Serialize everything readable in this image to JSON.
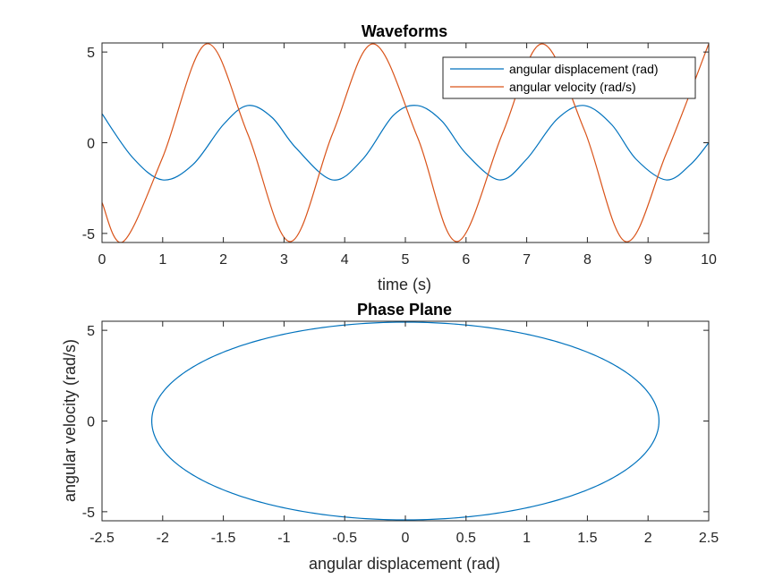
{
  "chart_data": [
    {
      "type": "line",
      "title": "Waveforms",
      "xlabel": "time (s)",
      "ylabel": "",
      "xlim": [
        0,
        10
      ],
      "ylim": [
        -5.5,
        5.5
      ],
      "xticks": [
        0,
        1,
        2,
        3,
        4,
        5,
        6,
        7,
        8,
        9,
        10
      ],
      "yticks": [
        -5,
        0,
        5
      ],
      "grid": false,
      "legend_position": "top-right",
      "series": [
        {
          "name": "angular displacement (rad)",
          "color": "#0072BD",
          "x": [
            0,
            0.5,
            1.0,
            1.5,
            2.0,
            2.4,
            2.8,
            3.2,
            3.8,
            4.3,
            4.8,
            5.2,
            5.6,
            6.0,
            6.55,
            7.0,
            7.5,
            7.95,
            8.4,
            8.8,
            9.3,
            9.7,
            10
          ],
          "y": [
            1.6,
            -0.8,
            -2.05,
            -1.2,
            1.0,
            2.05,
            1.4,
            -0.3,
            -2.05,
            -0.9,
            1.5,
            2.05,
            1.2,
            -0.6,
            -2.05,
            -0.9,
            1.3,
            2.05,
            1.0,
            -0.9,
            -2.05,
            -1.2,
            0.0
          ]
        },
        {
          "name": "angular velocity (rad/s)",
          "color": "#D95319",
          "x": [
            0,
            0.35,
            1.0,
            1.72,
            2.4,
            3.1,
            3.8,
            4.47,
            5.2,
            5.85,
            6.6,
            7.25,
            7.95,
            8.63,
            9.3,
            10
          ],
          "y": [
            -3.3,
            -5.45,
            -0.8,
            5.45,
            0.5,
            -5.45,
            0.5,
            5.45,
            0.3,
            -5.45,
            0.5,
            5.45,
            0.7,
            -5.45,
            -0.6,
            5.45
          ]
        }
      ]
    },
    {
      "type": "line",
      "title": "Phase Plane",
      "xlabel": "angular displacement (rad)",
      "ylabel": "angular velocity (rad/s)",
      "xlim": [
        -2.5,
        2.5
      ],
      "ylim": [
        -5.5,
        5.5
      ],
      "xticks": [
        -2.5,
        -2,
        -1.5,
        -1,
        -0.5,
        0,
        0.5,
        1,
        1.5,
        2,
        2.5
      ],
      "yticks": [
        -5,
        0,
        5
      ],
      "grid": false,
      "series": [
        {
          "color": "#0072BD",
          "theta_amplitude": 2.09,
          "omega_amplitude": 5.45
        }
      ]
    }
  ]
}
